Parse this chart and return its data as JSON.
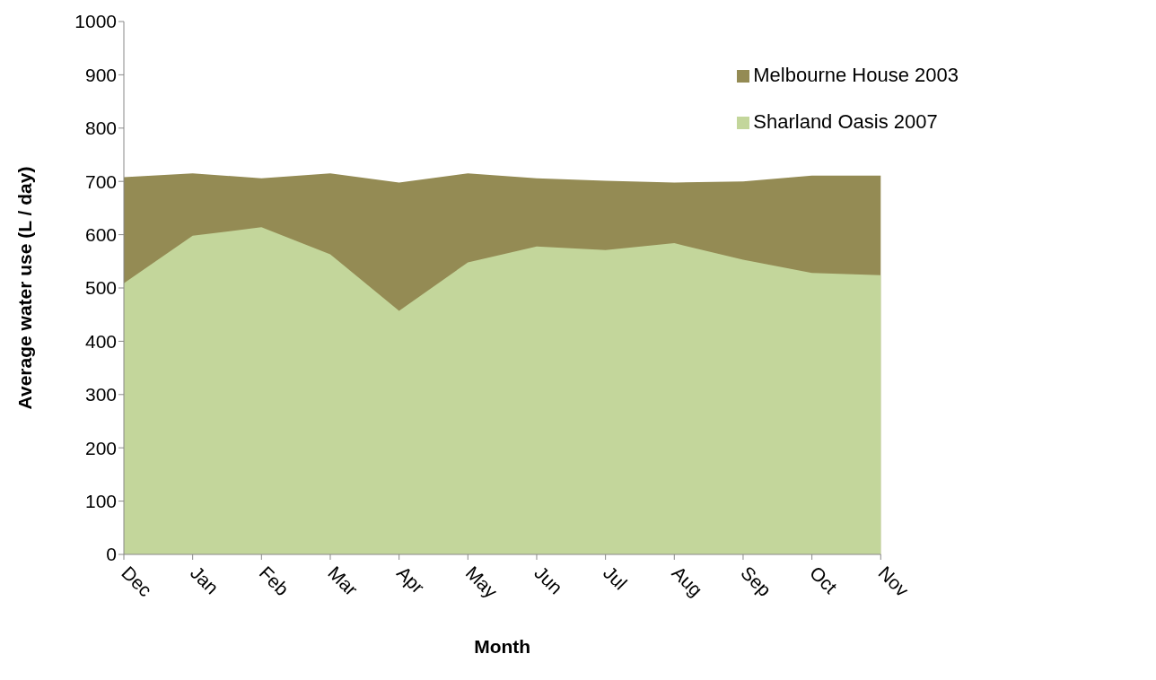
{
  "chart_data": {
    "type": "area",
    "xlabel": "Month",
    "ylabel": "Average water use (L / day)",
    "categories": [
      "Dec",
      "Jan",
      "Feb",
      "Mar",
      "Apr",
      "May",
      "Jun",
      "Jul",
      "Aug",
      "Sep",
      "Oct",
      "Nov"
    ],
    "series": [
      {
        "name": "Melbourne House 2003",
        "color": "#948b54",
        "values": [
          708,
          715,
          706,
          715,
          698,
          715,
          706,
          701,
          698,
          700,
          711,
          711
        ]
      },
      {
        "name": "Sharland Oasis 2007",
        "color": "#c3d69b",
        "values": [
          509,
          598,
          614,
          563,
          457,
          548,
          578,
          571,
          584,
          553,
          528,
          524
        ]
      }
    ],
    "ylim": [
      0,
      1000
    ],
    "yticks": [
      0,
      100,
      200,
      300,
      400,
      500,
      600,
      700,
      800,
      900,
      1000
    ],
    "grid": false,
    "legend": "top right"
  }
}
